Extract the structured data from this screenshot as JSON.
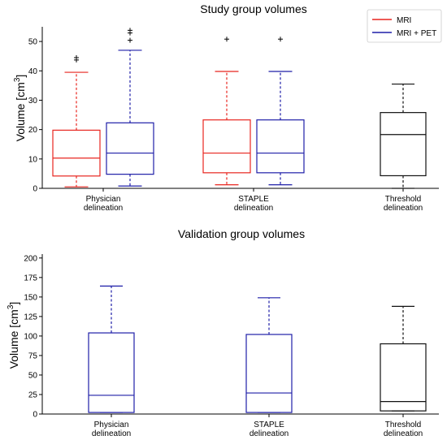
{
  "chart_data": [
    {
      "type": "box",
      "title": "Study group volumes",
      "ylabel": "Volume [cm",
      "ylabel_sup": "3",
      "ylabel_close": "]",
      "ylim": [
        0,
        55
      ],
      "yticks": [
        "0",
        "10",
        "20",
        "30",
        "40",
        "50"
      ],
      "categories": [
        [
          "Physician",
          "delineation"
        ],
        [
          "STAPLE",
          "delineation"
        ],
        [
          "Threshold",
          "delineation"
        ]
      ],
      "legend": {
        "position": "top-right",
        "entries": [
          {
            "label": "MRI",
            "color": "#e8251f"
          },
          {
            "label": "MRI + PET",
            "color": "#1f1fa8"
          }
        ]
      },
      "boxes": [
        {
          "group": 0,
          "slot": "left",
          "series": "MRI",
          "color": "#e8251f",
          "whisker_low": 0.5,
          "q1": 4.2,
          "median": 10.3,
          "q3": 19.8,
          "whisker_high": 39.5,
          "outliers": [
            43.7,
            44.5
          ]
        },
        {
          "group": 0,
          "slot": "right",
          "series": "MRI + PET",
          "color": "#1f1fa8",
          "whisker_low": 0.8,
          "q1": 4.8,
          "median": 12.0,
          "q3": 22.3,
          "whisker_high": 47.0,
          "outliers": [
            50.4,
            52.9,
            53.8
          ]
        },
        {
          "group": 1,
          "slot": "left",
          "series": "MRI",
          "color": "#e8251f",
          "whisker_low": 1.2,
          "q1": 5.3,
          "median": 12.0,
          "q3": 23.3,
          "whisker_high": 39.8,
          "outliers": [
            50.8
          ]
        },
        {
          "group": 1,
          "slot": "right",
          "series": "MRI + PET",
          "color": "#1f1fa8",
          "whisker_low": 1.2,
          "q1": 5.3,
          "median": 12.0,
          "q3": 23.3,
          "whisker_high": 39.8,
          "outliers": [
            50.8
          ]
        },
        {
          "group": 2,
          "slot": "center",
          "series": "Threshold",
          "color": "#111111",
          "whisker_low": 0.0,
          "q1": 4.3,
          "median": 18.3,
          "q3": 25.8,
          "whisker_high": 35.5,
          "outliers": []
        }
      ]
    },
    {
      "type": "box",
      "title": "Validation group volumes",
      "ylabel": "Volume [cm",
      "ylabel_sup": "3",
      "ylabel_close": "]",
      "ylim": [
        0,
        205
      ],
      "yticks": [
        "0",
        "25",
        "50",
        "75",
        "100",
        "125",
        "150",
        "175",
        "200"
      ],
      "categories": [
        [
          "Physician",
          "delineation"
        ],
        [
          "STAPLE",
          "delineation"
        ],
        [
          "Threshold",
          "delineation"
        ]
      ],
      "boxes": [
        {
          "group": 0,
          "slot": "center",
          "series": "MRI + PET",
          "color": "#1f1fa8",
          "whisker_low": 2,
          "q1": 2,
          "median": 24,
          "q3": 104,
          "whisker_high": 164,
          "outliers": []
        },
        {
          "group": 1,
          "slot": "center",
          "series": "MRI + PET",
          "color": "#1f1fa8",
          "whisker_low": 2,
          "q1": 2,
          "median": 27,
          "q3": 102,
          "whisker_high": 149,
          "outliers": []
        },
        {
          "group": 2,
          "slot": "center",
          "series": "Threshold",
          "color": "#111111",
          "whisker_low": 4,
          "q1": 4,
          "median": 16,
          "q3": 90,
          "whisker_high": 138,
          "outliers": []
        }
      ]
    }
  ]
}
